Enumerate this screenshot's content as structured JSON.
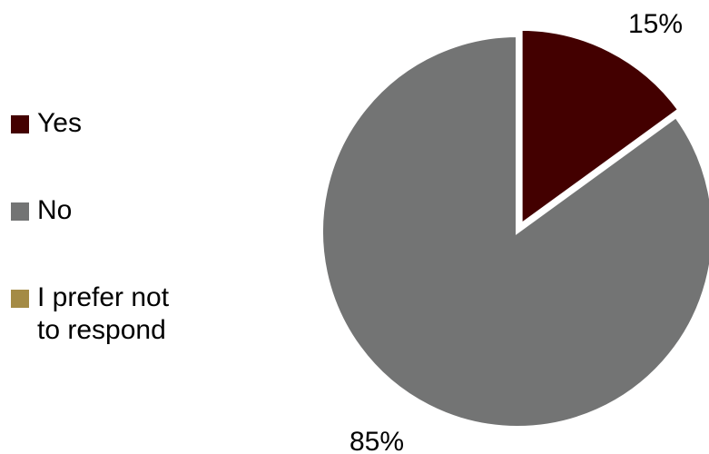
{
  "chart_data": {
    "type": "pie",
    "title": "",
    "slices": [
      {
        "label": "Yes",
        "value": 15,
        "color": "#430000"
      },
      {
        "label": "No",
        "value": 85,
        "color": "#737474"
      },
      {
        "label": "I prefer not to respond",
        "value": 0,
        "color": "#A48B45"
      }
    ],
    "data_labels": [
      "15%",
      "85%"
    ],
    "legend_placement": "left"
  },
  "legend": {
    "items": [
      {
        "label": "Yes",
        "color": "#430000"
      },
      {
        "label": "No",
        "color": "#737474"
      },
      {
        "label": "I prefer not to respond",
        "color": "#A48B45"
      }
    ]
  }
}
